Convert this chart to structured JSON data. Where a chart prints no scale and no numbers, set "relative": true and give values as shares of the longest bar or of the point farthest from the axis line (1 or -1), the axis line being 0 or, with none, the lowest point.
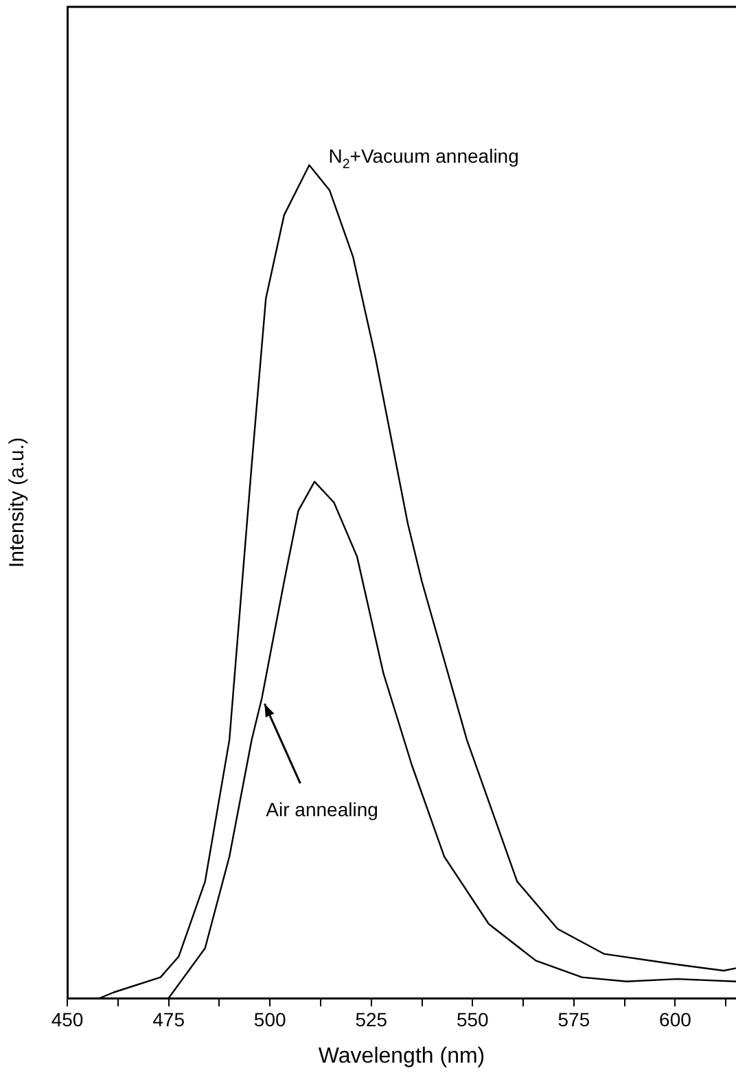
{
  "chart_data": {
    "type": "line",
    "relative": true,
    "xlabel": "Wavelength (nm)",
    "ylabel": "Intensity (a.u.)",
    "xlim": [
      450,
      615
    ],
    "xticks": [
      450,
      {
        "value": 462.5,
        "label": null
      },
      475,
      {
        "value": 487.5,
        "label": null
      },
      500,
      {
        "value": 512.5,
        "label": null
      },
      525,
      {
        "value": 537.5,
        "label": null
      },
      550,
      {
        "value": 562.5,
        "label": null
      },
      575,
      {
        "value": 587.5,
        "label": null
      },
      600,
      {
        "value": 612.5,
        "label": null
      }
    ],
    "grid": false,
    "legend": false,
    "marker": "none",
    "line_style": "solid",
    "series": [
      {
        "name": "N$_{2}$+Vacuum annealing",
        "color": "#000000",
        "x": [
          458,
          461.5,
          473,
          477.5,
          484,
          490,
          495.5,
          499,
          503.5,
          509.7,
          514.7,
          520.5,
          526,
          534,
          537.5,
          548.6,
          561,
          571,
          582.5,
          599.5,
          612,
          615
        ],
        "values": [
          0,
          0.007,
          0.025,
          0.05,
          0.14,
          0.31,
          0.64,
          0.84,
          0.94,
          1.0,
          0.97,
          0.89,
          0.77,
          0.57,
          0.5,
          0.31,
          0.14,
          0.083,
          0.053,
          0.041,
          0.033,
          0.036
        ]
      },
      {
        "name": "Air annealing",
        "color": "#000000",
        "x": [
          475,
          484,
          490,
          495.5,
          498,
          503.5,
          507,
          511,
          515.8,
          521.5,
          528,
          535,
          543,
          554,
          565.6,
          577,
          588,
          600.5,
          615
        ],
        "values": [
          0,
          0.06,
          0.17,
          0.31,
          0.36,
          0.5,
          0.585,
          0.62,
          0.595,
          0.53,
          0.39,
          0.28,
          0.17,
          0.089,
          0.045,
          0.025,
          0.02,
          0.023,
          0.02
        ]
      }
    ]
  }
}
